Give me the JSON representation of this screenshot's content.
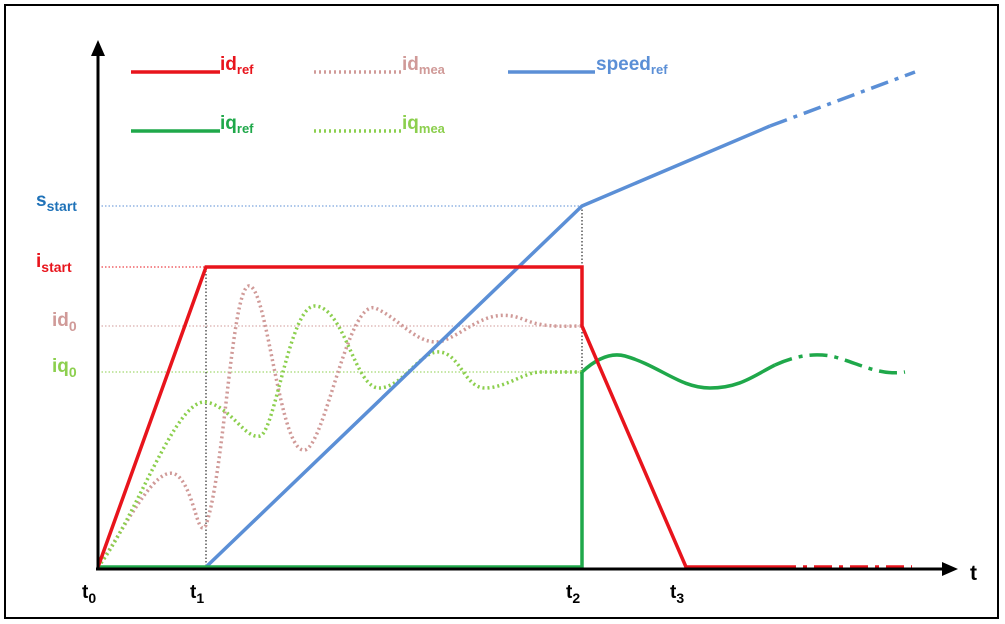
{
  "colors": {
    "axis": "#000000",
    "id_ref": "#e8141c",
    "id_mea": "#d09a98",
    "speed_ref": "#5b8fd6",
    "iq_ref": "#1fa84a",
    "iq_mea": "#8ccf4e"
  },
  "legend": {
    "id_ref": {
      "main": "id",
      "sub": "ref"
    },
    "id_mea": {
      "main": "id",
      "sub": "mea"
    },
    "speed_ref": {
      "main": "speed",
      "sub": "ref"
    },
    "iq_ref": {
      "main": "iq",
      "sub": "ref"
    },
    "iq_mea": {
      "main": "iq",
      "sub": "mea"
    }
  },
  "y_labels": {
    "s_start": {
      "main": "s",
      "sub": "start"
    },
    "i_start": {
      "main": "i",
      "sub": "start"
    },
    "id0": {
      "main": "id",
      "sub": "0"
    },
    "iq0": {
      "main": "iq",
      "sub": "0"
    }
  },
  "x_labels": {
    "t0": {
      "main": "t",
      "sub": "0"
    },
    "t1": {
      "main": "t",
      "sub": "1"
    },
    "t2": {
      "main": "t",
      "sub": "2"
    },
    "t3": {
      "main": "t",
      "sub": "3"
    },
    "t_axis": "t"
  }
}
